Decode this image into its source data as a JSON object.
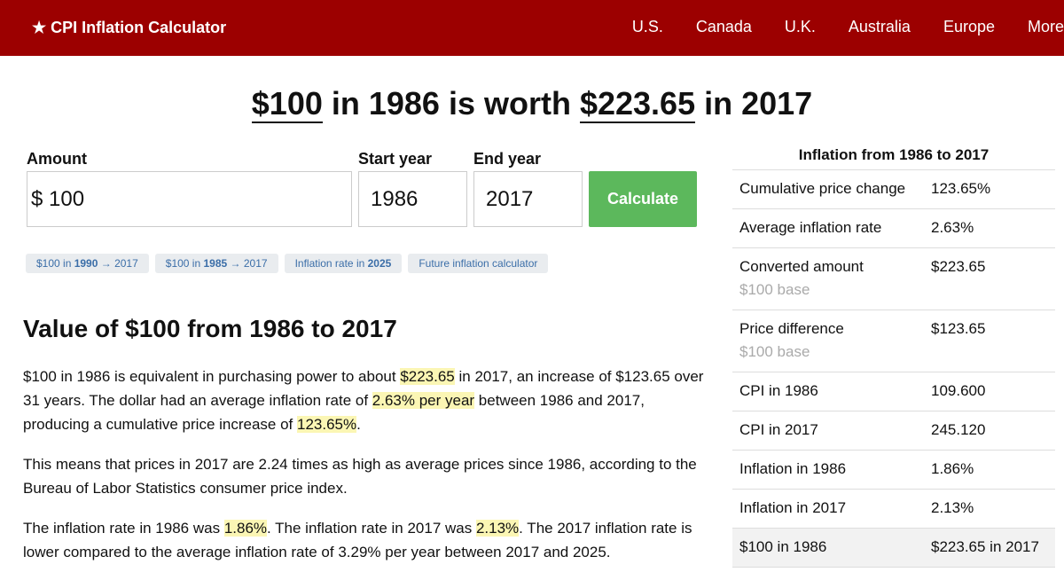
{
  "nav": {
    "brand": "★ CPI Inflation Calculator",
    "links": [
      "U.S.",
      "Canada",
      "U.K.",
      "Australia",
      "Europe",
      "More"
    ]
  },
  "headline": [
    "$100",
    " in 1986 is worth ",
    "$223.65",
    " in 2017"
  ],
  "form": {
    "amount_label": "Amount",
    "currency": "$",
    "amount": "100",
    "start_label": "Start year",
    "start": "1986",
    "end_label": "End year",
    "end": "2017",
    "button": "Calculate"
  },
  "chips": [
    [
      "$100 in ",
      "1990",
      " → 2017"
    ],
    [
      "$100 in ",
      "1985",
      " → 2017"
    ],
    [
      "Inflation rate in ",
      "2025"
    ],
    [
      "Future inflation calculator"
    ]
  ],
  "section_title": "Value of $100 from 1986 to 2017",
  "paragraphs": [
    [
      "$100 in 1986 is equivalent in purchasing power to about ",
      "$223.65",
      " in 2017, an increase of $123.65 over 31 years. The dollar had an average inflation rate of ",
      "2.63% per year",
      " between 1986 and 2017, producing a cumulative price increase of ",
      "123.65%",
      "."
    ],
    [
      "This means that prices in 2017 are 2.24 times as high as average prices since 1986, according to the Bureau of Labor Statistics consumer price index."
    ],
    [
      "The inflation rate in 1986 was ",
      "1.86%",
      ". The inflation rate in 2017 was ",
      "2.13%",
      ". The 2017 inflation rate is lower compared to the average inflation rate of 3.29% per year between 2017 and 2025."
    ]
  ],
  "table": {
    "title": "Inflation from 1986 to 2017",
    "rows": [
      {
        "label": "Cumulative price change",
        "value": "123.65%"
      },
      {
        "label": "Average inflation rate",
        "value": "2.63%"
      },
      {
        "label": "Converted amount",
        "sub": "$100 base",
        "value": "$223.65"
      },
      {
        "label": "Price difference",
        "sub": "$100 base",
        "value": "$123.65"
      },
      {
        "label": "CPI in 1986",
        "value": "109.600"
      },
      {
        "label": "CPI in 2017",
        "value": "245.120"
      },
      {
        "label": "Inflation in 1986",
        "value": "1.86%"
      },
      {
        "label": "Inflation in 2017",
        "value": "2.13%"
      },
      {
        "label": "$100 in 1986",
        "value": "$223.65 in 2017"
      }
    ]
  }
}
